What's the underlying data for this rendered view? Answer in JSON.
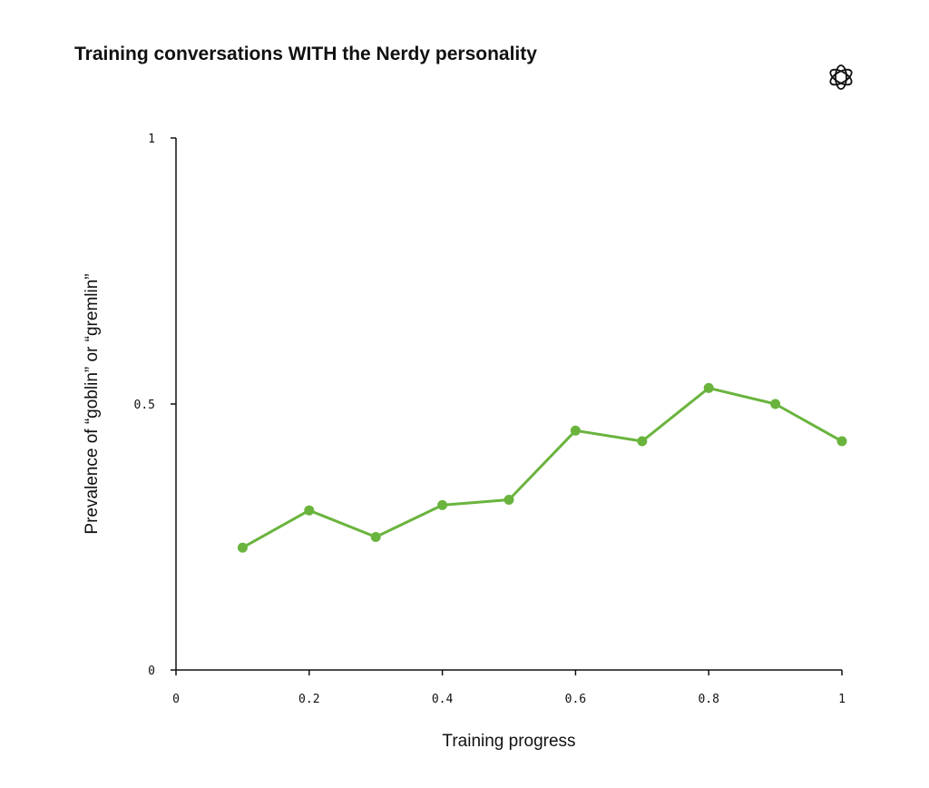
{
  "chart_data": {
    "type": "line",
    "title": "Training conversations WITH the Nerdy personality",
    "xlabel": "Training progress",
    "ylabel": "Prevalence of “goblin” or “gremlin”",
    "xlim": [
      0,
      1
    ],
    "ylim": [
      0,
      1
    ],
    "x_ticks": [
      "0",
      "0.2",
      "0.4",
      "0.6",
      "0.8",
      "1"
    ],
    "x_tick_values": [
      0,
      0.2,
      0.4,
      0.6,
      0.8,
      1
    ],
    "y_ticks": [
      "0",
      "0.5",
      "1"
    ],
    "y_tick_values": [
      0,
      0.5,
      1
    ],
    "grid": false,
    "legend": "none",
    "series": [
      {
        "color": "#6ab43e",
        "x": [
          0.1,
          0.2,
          0.3,
          0.4,
          0.5,
          0.6,
          0.7,
          0.8,
          0.9,
          1.0
        ],
        "y": [
          0.23,
          0.3,
          0.25,
          0.31,
          0.32,
          0.45,
          0.43,
          0.53,
          0.5,
          0.43
        ]
      }
    ]
  },
  "logo": {
    "icon": "openai-logo-icon"
  }
}
